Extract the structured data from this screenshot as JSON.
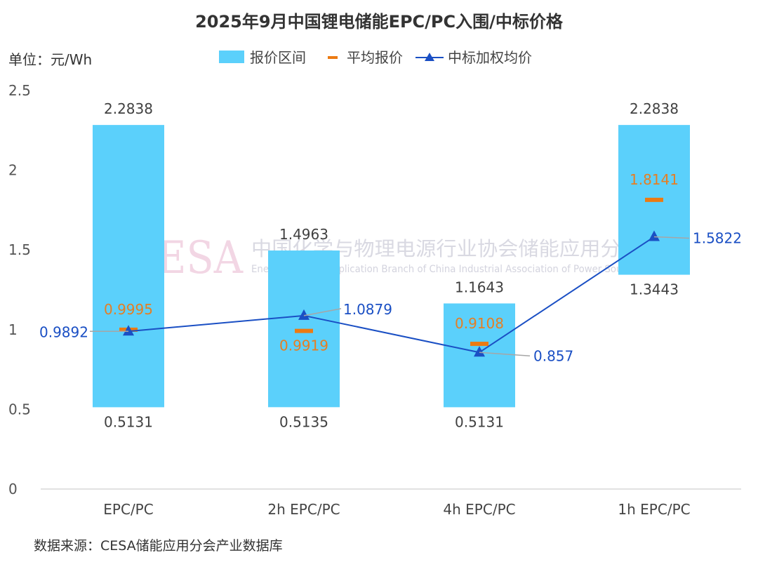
{
  "title": "2025年9月中国锂电储能EPC/PC入围/中标价格",
  "unit_label": "单位：元/Wh",
  "source": "数据来源：CESA储能应用分会产业数据库",
  "watermark": {
    "logo": "CESA",
    "cn": "中国化学与物理电源行业协会储能应用分会",
    "en": "Energy Storage Application Branch of China Industrial Association of Power Sources"
  },
  "legend": {
    "range": "报价区间",
    "avg": "平均报价",
    "win": "中标加权均价"
  },
  "colors": {
    "range": "#5BD0FB",
    "avg": "#EC7A12",
    "win": "#1A4FC4",
    "leader": "#A6A6A6"
  },
  "chart_data": {
    "type": "bar",
    "categories": [
      "EPC/PC",
      "2h EPC/PC",
      "4h EPC/PC",
      "1h EPC/PC"
    ],
    "series": [
      {
        "name": "报价区间",
        "kind": "floating-bar",
        "low": [
          0.5131,
          0.5135,
          0.5131,
          1.3443
        ],
        "high": [
          2.2838,
          1.4963,
          1.1643,
          2.2838
        ],
        "low_labels": [
          "0.5131",
          "0.5135",
          "0.5131",
          "1.3443"
        ],
        "high_labels": [
          "2.2838",
          "1.4963",
          "1.1643",
          "2.2838"
        ]
      },
      {
        "name": "平均报价",
        "kind": "marker",
        "values": [
          0.9995,
          0.9919,
          0.9108,
          1.8141
        ],
        "labels": [
          "0.9995",
          "0.9919",
          "0.9108",
          "1.8141"
        ]
      },
      {
        "name": "中标加权均价",
        "kind": "line",
        "values": [
          0.9892,
          1.0879,
          0.857,
          1.5822
        ],
        "labels": [
          "0.9892",
          "1.0879",
          "0.857",
          "1.5822"
        ]
      }
    ],
    "yticks": [
      "0",
      "0.5",
      "1",
      "1.5",
      "2",
      "2.5"
    ],
    "ylim": [
      0,
      2.5
    ],
    "grid": false,
    "legend_position": "top"
  }
}
